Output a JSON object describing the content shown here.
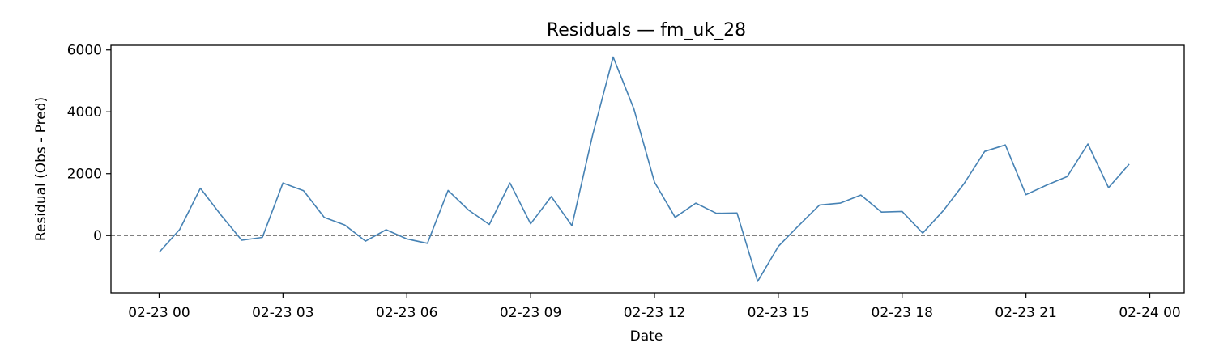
{
  "chart_data": {
    "type": "line",
    "title": "Residuals — fm_uk_28",
    "xlabel": "Date",
    "ylabel": "Residual (Obs - Pred)",
    "x_tick_labels": [
      "02-23 00",
      "02-23 03",
      "02-23 06",
      "02-23 09",
      "02-23 12",
      "02-23 15",
      "02-23 18",
      "02-23 21",
      "02-24 00"
    ],
    "y_ticks": [
      0,
      2000,
      4000,
      6000
    ],
    "xlim": [
      "02-22 22:50",
      "02-24 00:50"
    ],
    "ylim": [
      -1850,
      6150
    ],
    "grid": false,
    "reference_line": {
      "y": 0,
      "style": "dashed",
      "color": "#808080"
    },
    "series": [
      {
        "color": "#4682b4",
        "x": [
          "02-23 00:00",
          "02-23 00:30",
          "02-23 01:00",
          "02-23 01:30",
          "02-23 02:00",
          "02-23 02:30",
          "02-23 03:00",
          "02-23 03:30",
          "02-23 04:00",
          "02-23 04:30",
          "02-23 05:00",
          "02-23 05:30",
          "02-23 06:00",
          "02-23 06:30",
          "02-23 07:00",
          "02-23 07:30",
          "02-23 08:00",
          "02-23 08:30",
          "02-23 09:00",
          "02-23 09:30",
          "02-23 10:00",
          "02-23 10:30",
          "02-23 11:00",
          "02-23 11:30",
          "02-23 12:00",
          "02-23 12:30",
          "02-23 13:00",
          "02-23 13:30",
          "02-23 14:00",
          "02-23 14:30",
          "02-23 15:00",
          "02-23 15:30",
          "02-23 16:00",
          "02-23 16:30",
          "02-23 17:00",
          "02-23 17:30",
          "02-23 18:00",
          "02-23 18:30",
          "02-23 19:00",
          "02-23 19:30",
          "02-23 20:00",
          "02-23 20:30",
          "02-23 21:00",
          "02-23 21:30",
          "02-23 22:00",
          "02-23 22:30",
          "02-23 23:00",
          "02-23 23:30"
        ],
        "y": [
          -540,
          200,
          1530,
          660,
          -150,
          -60,
          1700,
          1450,
          590,
          340,
          -180,
          190,
          -110,
          -250,
          1460,
          820,
          360,
          1700,
          380,
          1260,
          320,
          3250,
          5770,
          4100,
          1730,
          590,
          1050,
          720,
          730,
          -1480,
          -350,
          330,
          990,
          1050,
          1310,
          760,
          780,
          80,
          810,
          1680,
          2720,
          2930,
          1320,
          1630,
          1910,
          2960,
          1550,
          2310
        ]
      }
    ]
  }
}
